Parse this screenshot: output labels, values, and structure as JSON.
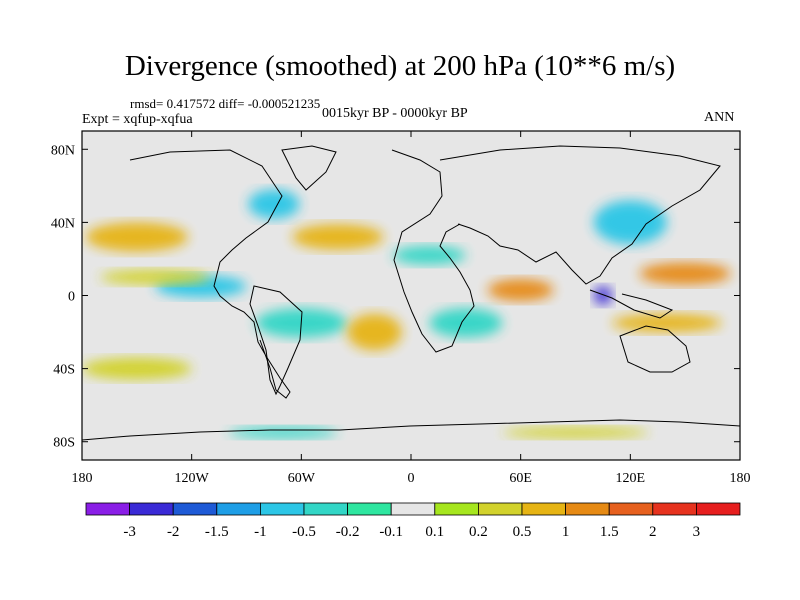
{
  "chart_data": {
    "type": "heatmap",
    "title": "Divergence (smoothed) at 200 hPa (10**6 m/s)",
    "subtitle_left": "rmsd= 0.417572  diff= -0.000521235",
    "experiment": "Expt = xqfup-xqfua",
    "period": "0015kyr BP - 0000kyr BP",
    "season": "ANN",
    "x_ticks": [
      {
        "value": -180,
        "label": "180"
      },
      {
        "value": -120,
        "label": "120W"
      },
      {
        "value": -60,
        "label": "60W"
      },
      {
        "value": 0,
        "label": "0"
      },
      {
        "value": 60,
        "label": "60E"
      },
      {
        "value": 120,
        "label": "120E"
      },
      {
        "value": 180,
        "label": "180"
      }
    ],
    "y_ticks": [
      {
        "value": 80,
        "label": "80N"
      },
      {
        "value": 40,
        "label": "40N"
      },
      {
        "value": 0,
        "label": "0"
      },
      {
        "value": -40,
        "label": "40S"
      },
      {
        "value": -80,
        "label": "80S"
      }
    ],
    "xlim": [
      -180,
      180
    ],
    "ylim": [
      -90,
      90
    ],
    "contour_levels": [
      "-3",
      "-2",
      "-1.5",
      "-1",
      "-0.5",
      "-0.2",
      "-0.1",
      "0.1",
      "0.2",
      "0.5",
      "1",
      "1.5",
      "2",
      "3"
    ],
    "colorbar_colors": [
      "#8a1ee6",
      "#3a2ad6",
      "#1e5ad6",
      "#1e9ee6",
      "#2cc6e6",
      "#32d6c6",
      "#2ee6a0",
      "#e6e6e6",
      "#a6e61e",
      "#d2d22c",
      "#e6b414",
      "#e68a14",
      "#e6601e",
      "#e6321e",
      "#e61e1e"
    ],
    "regions": [
      {
        "lon": -150,
        "lat": 32,
        "rlon": 28,
        "rlat": 8,
        "value": 0.7
      },
      {
        "lon": -115,
        "lat": 5,
        "rlon": 25,
        "rlat": 6,
        "value": -0.8
      },
      {
        "lon": -140,
        "lat": 10,
        "rlon": 30,
        "rlat": 4,
        "value": 0.3
      },
      {
        "lon": -75,
        "lat": 50,
        "rlon": 14,
        "rlat": 8,
        "value": -0.7
      },
      {
        "lon": -40,
        "lat": 32,
        "rlon": 25,
        "rlat": 7,
        "value": 0.6
      },
      {
        "lon": 10,
        "lat": 22,
        "rlon": 20,
        "rlat": 5,
        "value": -0.5
      },
      {
        "lon": 60,
        "lat": 3,
        "rlon": 18,
        "rlat": 6,
        "value": 1.2
      },
      {
        "lon": 105,
        "lat": 0,
        "rlon": 5,
        "rlat": 5,
        "value": -2.2
      },
      {
        "lon": 150,
        "lat": 12,
        "rlon": 25,
        "rlat": 6,
        "value": 1.4
      },
      {
        "lon": 120,
        "lat": 40,
        "rlon": 20,
        "rlat": 12,
        "value": -0.6
      },
      {
        "lon": 140,
        "lat": -15,
        "rlon": 30,
        "rlat": 5,
        "value": 0.5
      },
      {
        "lon": -60,
        "lat": -15,
        "rlon": 25,
        "rlat": 8,
        "value": -0.4
      },
      {
        "lon": -20,
        "lat": -20,
        "rlon": 15,
        "rlat": 10,
        "value": 0.5
      },
      {
        "lon": 30,
        "lat": -15,
        "rlon": 20,
        "rlat": 8,
        "value": -0.5
      },
      {
        "lon": -150,
        "lat": -40,
        "rlon": 30,
        "rlat": 6,
        "value": 0.3
      },
      {
        "lon": -70,
        "lat": -75,
        "rlon": 30,
        "rlat": 3,
        "value": -0.3
      },
      {
        "lon": 90,
        "lat": -75,
        "rlon": 40,
        "rlat": 3,
        "value": 0.3
      }
    ]
  }
}
